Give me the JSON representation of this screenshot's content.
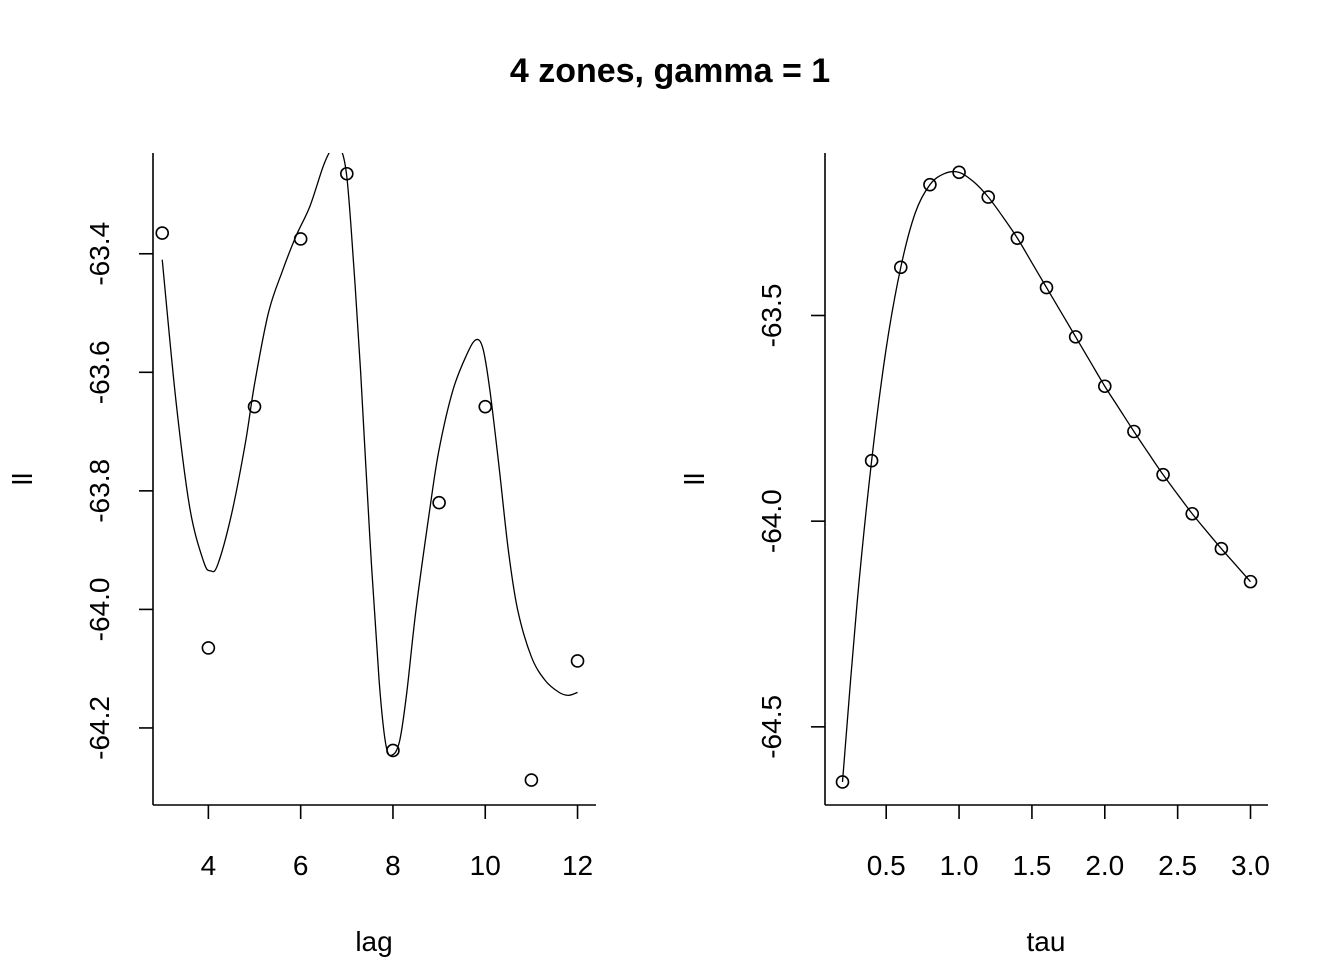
{
  "title": "4 zones, gamma = 1",
  "chart_data": [
    {
      "type": "scatter",
      "xlabel": "lag",
      "ylabel": "ll",
      "xlim": [
        2.8,
        12.4
      ],
      "ylim": [
        -64.33,
        -63.23
      ],
      "xticks": [
        4,
        6,
        8,
        10,
        12
      ],
      "yticks": [
        -63.4,
        -63.6,
        -63.8,
        -64.0,
        -64.2
      ],
      "xtick_labels": [
        "4",
        "6",
        "8",
        "10",
        "12"
      ],
      "ytick_labels": [
        "-63.4",
        "-63.6",
        "-63.8",
        "-64.0",
        "-64.2"
      ],
      "points": {
        "x": [
          3,
          4,
          5,
          6,
          7,
          8,
          9,
          10,
          11,
          12
        ],
        "y": [
          -63.365,
          -64.065,
          -63.658,
          -63.375,
          -63.265,
          -64.238,
          -63.82,
          -63.658,
          -64.288,
          -64.087
        ]
      },
      "curve": {
        "x": [
          3.0,
          3.3,
          3.6,
          3.9,
          4.05,
          4.2,
          4.5,
          4.8,
          5.0,
          5.3,
          5.6,
          5.9,
          6.2,
          6.5,
          6.7,
          6.85,
          7.0,
          7.15,
          7.3,
          7.5,
          7.7,
          7.85,
          8.0,
          8.15,
          8.3,
          8.5,
          8.8,
          9.0,
          9.3,
          9.6,
          9.8,
          9.95,
          10.1,
          10.3,
          10.5,
          10.7,
          11.0,
          11.3,
          11.6,
          11.8,
          12.0
        ],
        "y": [
          -63.41,
          -63.65,
          -63.83,
          -63.92,
          -63.935,
          -63.925,
          -63.84,
          -63.72,
          -63.62,
          -63.5,
          -63.43,
          -63.37,
          -63.32,
          -63.25,
          -63.22,
          -63.22,
          -63.27,
          -63.42,
          -63.6,
          -63.88,
          -64.12,
          -64.23,
          -64.245,
          -64.22,
          -64.14,
          -64.0,
          -63.83,
          -63.73,
          -63.63,
          -63.57,
          -63.545,
          -63.56,
          -63.63,
          -63.76,
          -63.9,
          -64.0,
          -64.08,
          -64.12,
          -64.14,
          -64.145,
          -64.14
        ]
      }
    },
    {
      "type": "scatter",
      "xlabel": "tau",
      "ylabel": "ll",
      "xlim": [
        0.08,
        3.12
      ],
      "ylim": [
        -64.69,
        -63.105
      ],
      "xticks": [
        0.5,
        1.0,
        1.5,
        2.0,
        2.5,
        3.0
      ],
      "yticks": [
        -63.5,
        -64.0,
        -64.5
      ],
      "xtick_labels": [
        "0.5",
        "1.0",
        "1.5",
        "2.0",
        "2.5",
        "3.0"
      ],
      "ytick_labels": [
        "-63.5",
        "-64.0",
        "-64.5"
      ],
      "points": {
        "x": [
          0.2,
          0.4,
          0.6,
          0.8,
          1.0,
          1.2,
          1.4,
          1.6,
          1.8,
          2.0,
          2.2,
          2.4,
          2.6,
          2.8,
          3.0
        ],
        "y": [
          -64.634,
          -63.853,
          -63.383,
          -63.182,
          -63.152,
          -63.212,
          -63.312,
          -63.432,
          -63.552,
          -63.672,
          -63.782,
          -63.887,
          -63.982,
          -64.067,
          -64.147
        ]
      },
      "curve": {
        "x": [
          0.2,
          0.3,
          0.4,
          0.5,
          0.6,
          0.7,
          0.8,
          0.9,
          1.0,
          1.1,
          1.2,
          1.3,
          1.4,
          1.5,
          1.6,
          1.7,
          1.8,
          1.9,
          2.0,
          2.1,
          2.2,
          2.3,
          2.4,
          2.5,
          2.6,
          2.7,
          2.8,
          2.9,
          3.0
        ],
        "y": [
          -64.634,
          -64.2,
          -63.853,
          -63.58,
          -63.383,
          -63.25,
          -63.182,
          -63.155,
          -63.152,
          -63.175,
          -63.212,
          -63.26,
          -63.312,
          -63.372,
          -63.432,
          -63.492,
          -63.552,
          -63.612,
          -63.672,
          -63.727,
          -63.782,
          -63.835,
          -63.887,
          -63.935,
          -63.982,
          -64.025,
          -64.067,
          -64.107,
          -64.147
        ]
      }
    }
  ]
}
